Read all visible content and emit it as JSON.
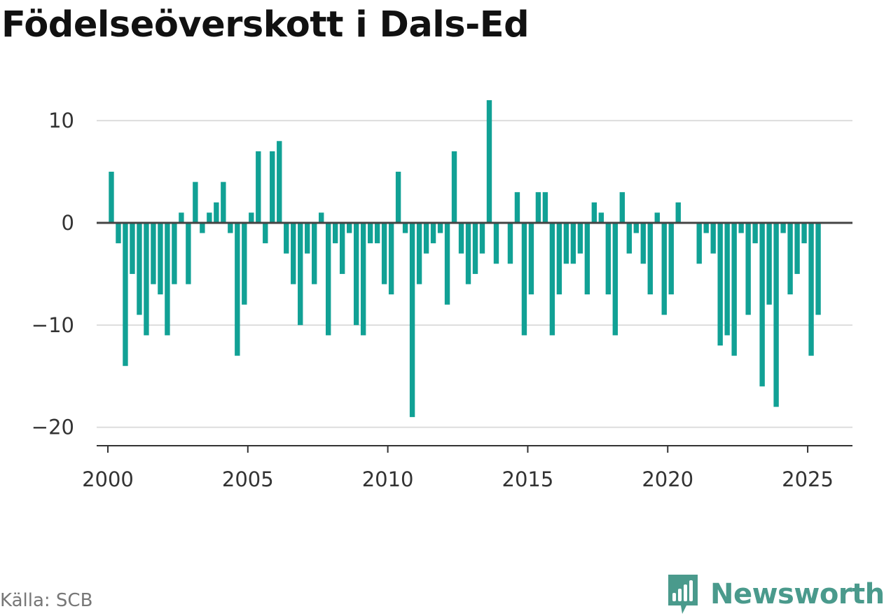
{
  "title": "Födelseöverskott i Dals-Ed",
  "source": "Källa: SCB",
  "brand": {
    "name": "Newsworthy",
    "icon": "newsworthy-logo-icon",
    "color": "#4a9a8c"
  },
  "colors": {
    "bar": "#11a195",
    "grid": "#dddddd",
    "zero_line": "#444444",
    "axis": "#333333"
  },
  "chart_data": {
    "type": "bar",
    "frequency": "quarterly",
    "x_start": "2000-Q1",
    "values": [
      5,
      -2,
      -14,
      -5,
      -9,
      -11,
      -6,
      -7,
      -11,
      -6,
      1,
      -6,
      4,
      -1,
      1,
      2,
      4,
      -1,
      -13,
      -8,
      1,
      7,
      -2,
      7,
      8,
      -3,
      -6,
      -10,
      -3,
      -6,
      1,
      -11,
      -2,
      -5,
      -1,
      -10,
      -11,
      -2,
      -2,
      -6,
      -7,
      5,
      -1,
      -19,
      -6,
      -3,
      -2,
      -1,
      -8,
      7,
      -3,
      -6,
      -5,
      -3,
      12,
      -4,
      0,
      -4,
      3,
      -11,
      -7,
      3,
      3,
      -11,
      -7,
      -4,
      -4,
      -3,
      -7,
      2,
      1,
      -7,
      -11,
      3,
      -3,
      -1,
      -4,
      -7,
      1,
      -9,
      -7,
      2,
      0,
      0,
      -4,
      -1,
      -3,
      -12,
      -11,
      -13,
      -1,
      -9,
      -2,
      -16,
      -8,
      -18,
      -1,
      -7,
      -5,
      -2,
      -13,
      -9
    ],
    "xlim": [
      1999.6,
      2026.6
    ],
    "ylim": [
      -21.8,
      12.2
    ],
    "yticks": [
      10,
      0,
      -10,
      -20
    ],
    "ytick_labels": [
      "10",
      "0",
      "−10",
      "−20"
    ],
    "xticks": [
      2000,
      2005,
      2010,
      2015,
      2020,
      2025
    ],
    "xtick_labels": [
      "2000",
      "2005",
      "2010",
      "2015",
      "2020",
      "2025"
    ],
    "xlabel": "",
    "ylabel": "",
    "grid": true,
    "legend": "none"
  }
}
